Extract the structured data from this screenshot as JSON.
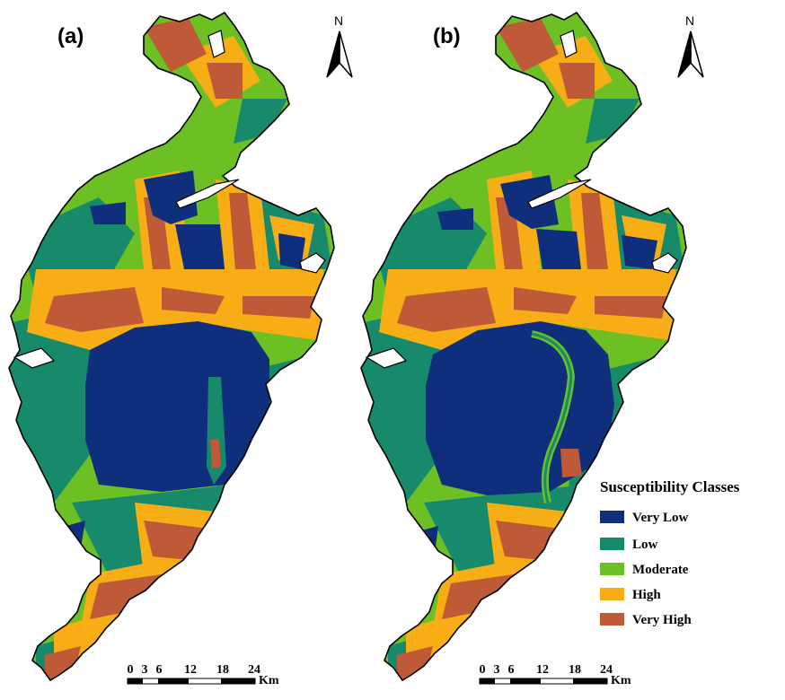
{
  "panels": [
    {
      "label": "(a)",
      "north": "N"
    },
    {
      "label": "(b)",
      "north": "N"
    }
  ],
  "scale_bar": {
    "ticks": [
      "0",
      "3",
      "6",
      "12",
      "18",
      "24"
    ],
    "unit": "Km"
  },
  "legend": {
    "title": "Susceptibility Classes",
    "classes": [
      {
        "label": "Very Low",
        "color": "#0f2f7c"
      },
      {
        "label": "Low",
        "color": "#178a6c"
      },
      {
        "label": "Moderate",
        "color": "#6cc024"
      },
      {
        "label": "High",
        "color": "#f7ae16"
      },
      {
        "label": "Very High",
        "color": "#bf5a38"
      }
    ]
  }
}
